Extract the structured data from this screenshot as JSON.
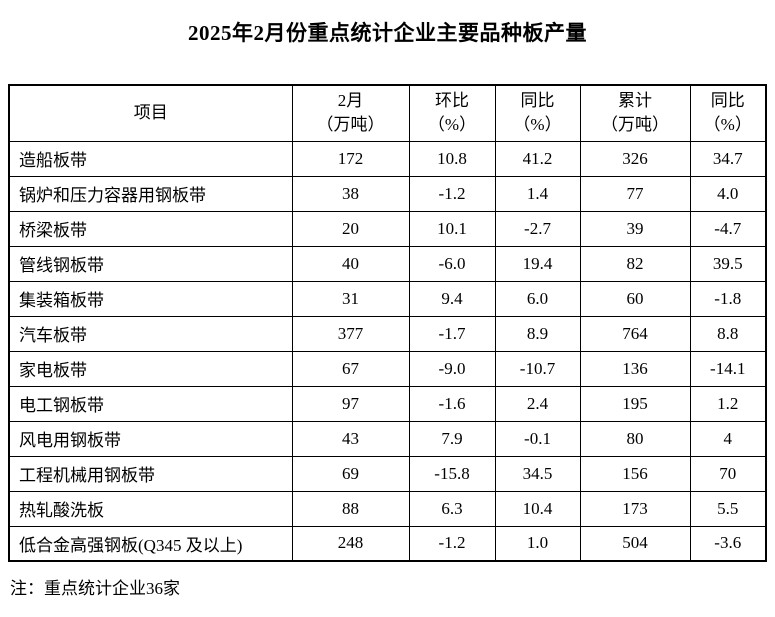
{
  "page": {
    "title": "2025年2月份重点统计企业主要品种板产量",
    "note": "注：重点统计企业36家"
  },
  "table": {
    "columns": [
      "项目",
      "2月\n（万吨）",
      "环比\n（%）",
      "同比\n（%）",
      "累计\n（万吨）",
      "同比\n（%）"
    ],
    "rows": [
      {
        "item": "造船板带",
        "feb": "172",
        "mom": "10.8",
        "yoy": "41.2",
        "cum": "326",
        "cum_yoy": "34.7"
      },
      {
        "item": "锅炉和压力容器用钢板带",
        "feb": "38",
        "mom": "-1.2",
        "yoy": "1.4",
        "cum": "77",
        "cum_yoy": "4.0"
      },
      {
        "item": "桥梁板带",
        "feb": "20",
        "mom": "10.1",
        "yoy": "-2.7",
        "cum": "39",
        "cum_yoy": "-4.7"
      },
      {
        "item": "管线钢板带",
        "feb": "40",
        "mom": "-6.0",
        "yoy": "19.4",
        "cum": "82",
        "cum_yoy": "39.5"
      },
      {
        "item": "集装箱板带",
        "feb": "31",
        "mom": "9.4",
        "yoy": "6.0",
        "cum": "60",
        "cum_yoy": "-1.8"
      },
      {
        "item": "汽车板带",
        "feb": "377",
        "mom": "-1.7",
        "yoy": "8.9",
        "cum": "764",
        "cum_yoy": "8.8"
      },
      {
        "item": "家电板带",
        "feb": "67",
        "mom": "-9.0",
        "yoy": "-10.7",
        "cum": "136",
        "cum_yoy": "-14.1"
      },
      {
        "item": "电工钢板带",
        "feb": "97",
        "mom": "-1.6",
        "yoy": "2.4",
        "cum": "195",
        "cum_yoy": "1.2"
      },
      {
        "item": "风电用钢板带",
        "feb": "43",
        "mom": "7.9",
        "yoy": "-0.1",
        "cum": "80",
        "cum_yoy": "4"
      },
      {
        "item": "工程机械用钢板带",
        "feb": "69",
        "mom": "-15.8",
        "yoy": "34.5",
        "cum": "156",
        "cum_yoy": "70"
      },
      {
        "item": "热轧酸洗板",
        "feb": "88",
        "mom": "6.3",
        "yoy": "10.4",
        "cum": "173",
        "cum_yoy": "5.5"
      },
      {
        "item": "低合金高强钢板(Q345 及以上)",
        "feb": "248",
        "mom": "-1.2",
        "yoy": "1.0",
        "cum": "504",
        "cum_yoy": "-3.6"
      }
    ]
  }
}
